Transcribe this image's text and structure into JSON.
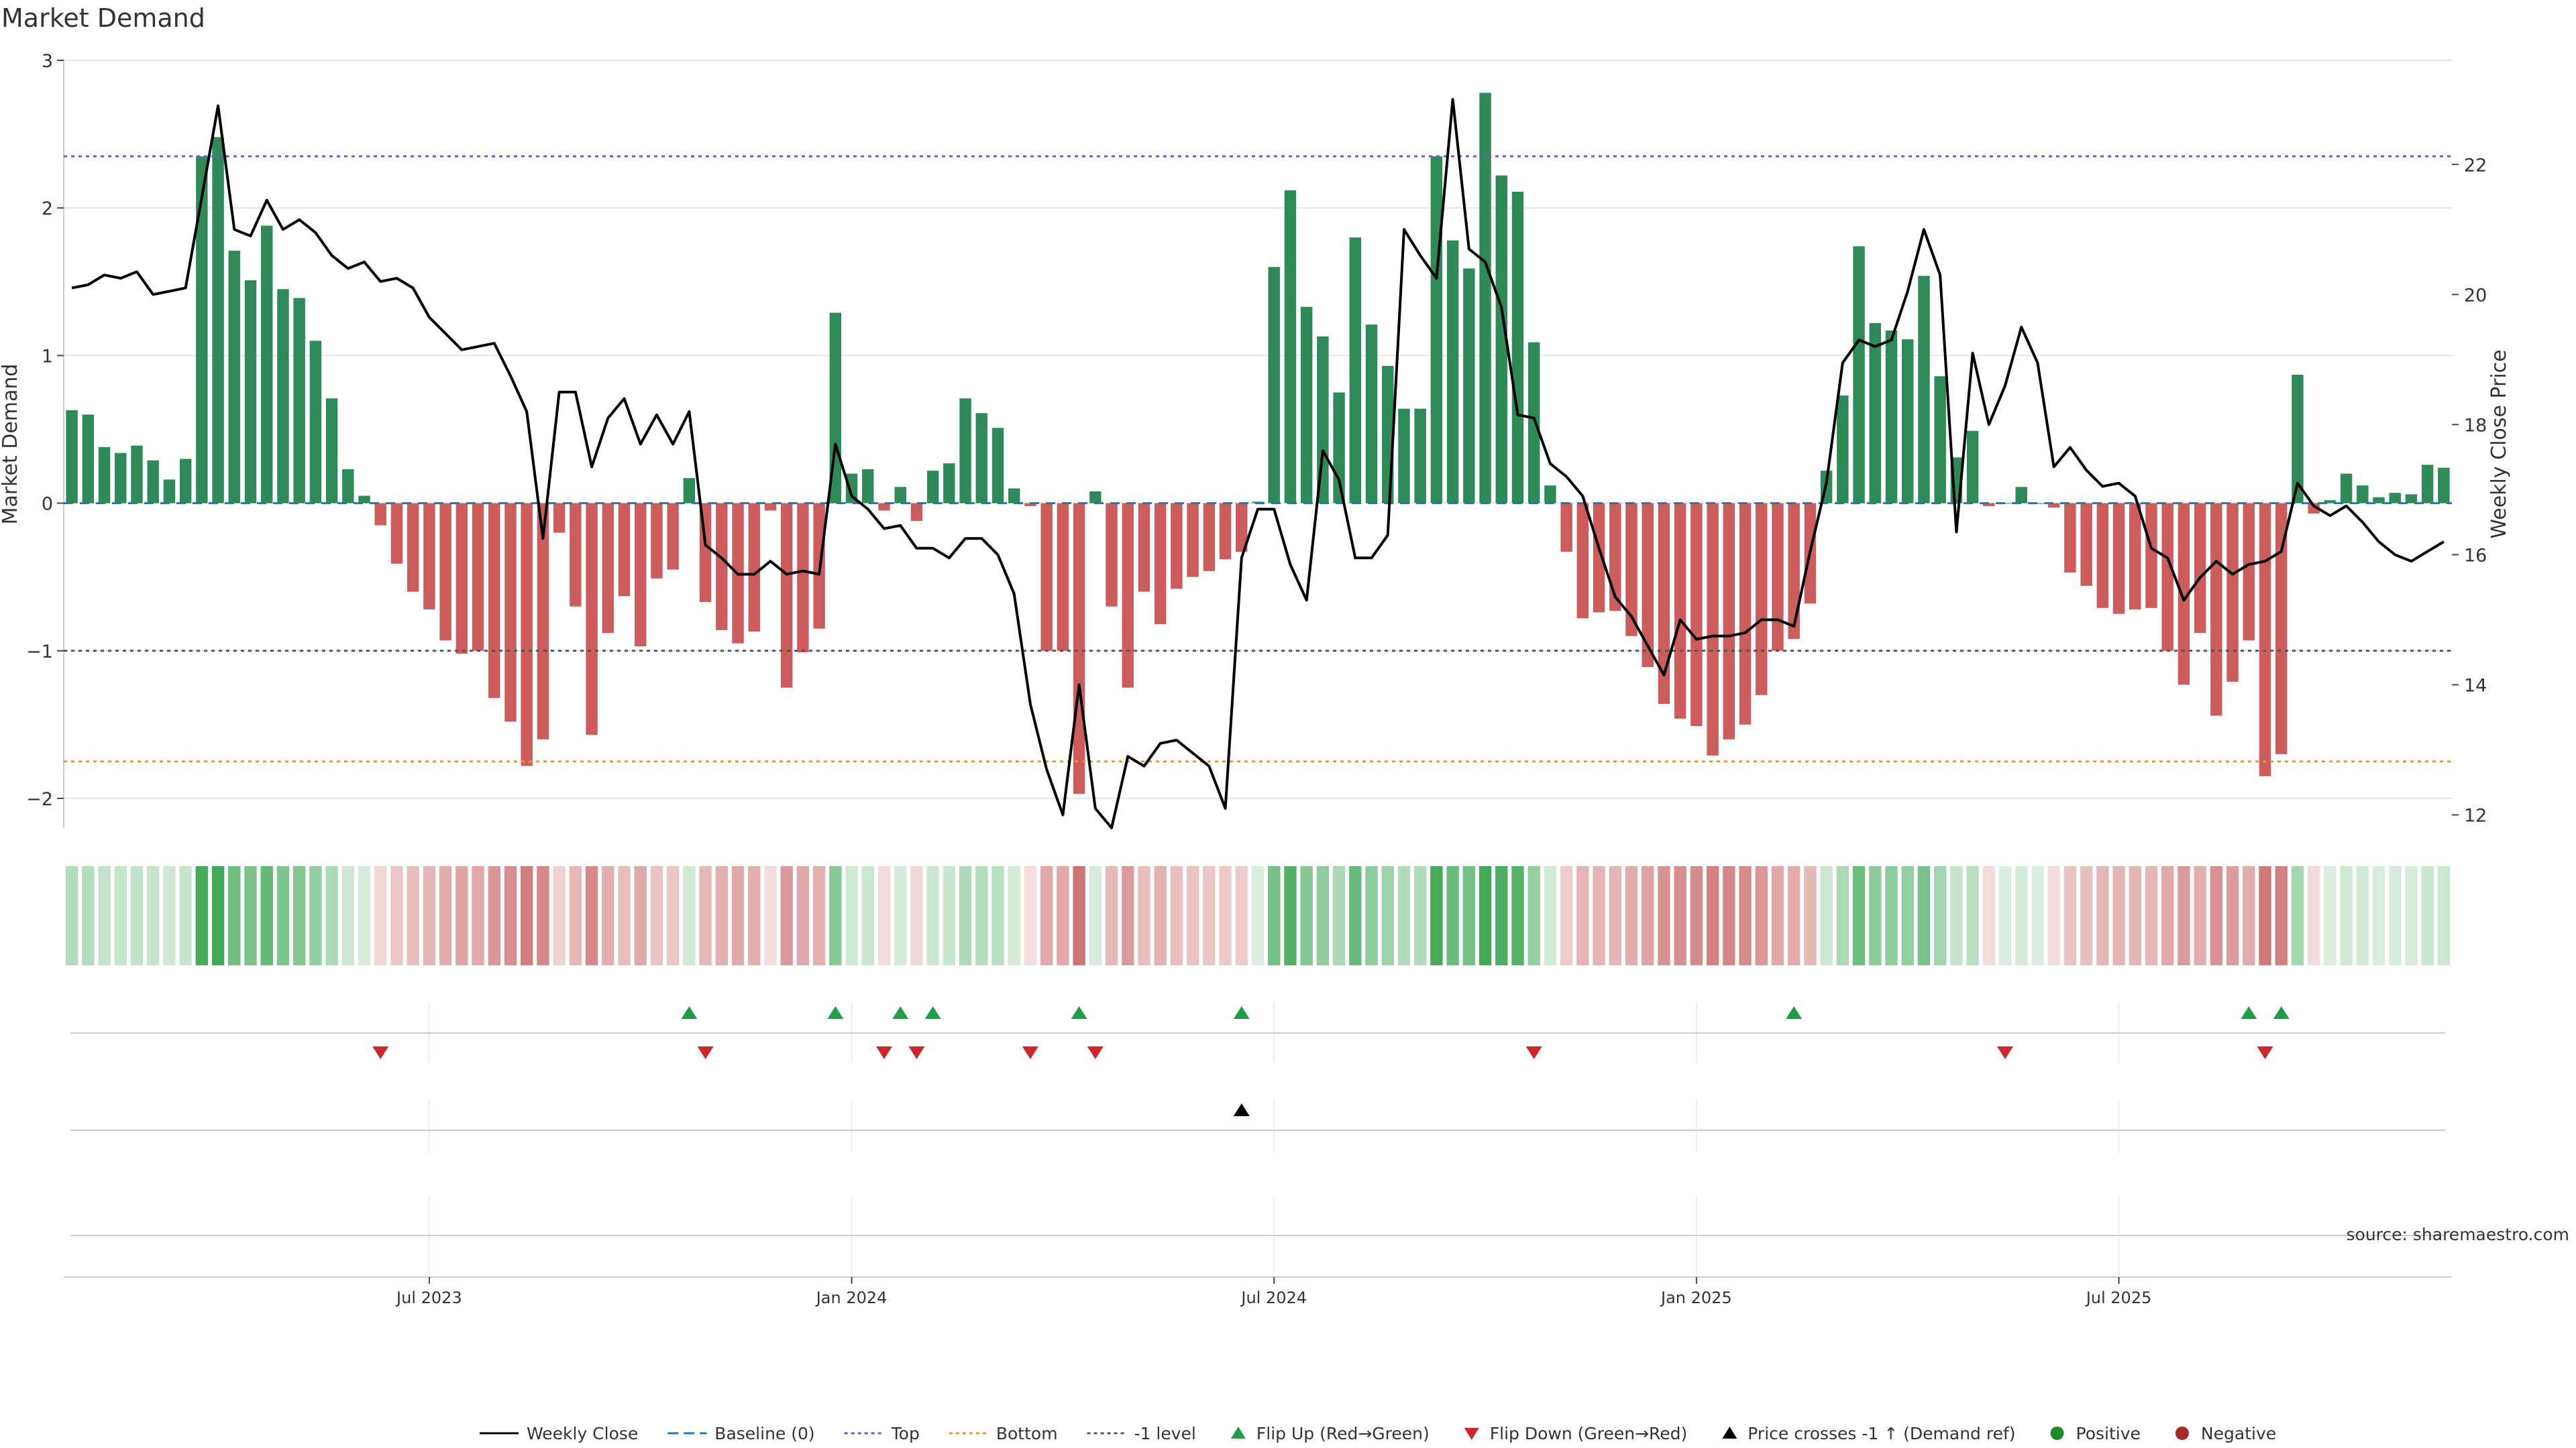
{
  "chart_data": {
    "type": "bar",
    "title": "Market Demand",
    "ylabel": "Market Demand",
    "y2label": "Weekly Close Price",
    "source": "source: sharemaestro.com",
    "ylim": [
      -2.2,
      3
    ],
    "y2lim": [
      11.8,
      23.6
    ],
    "yticks": [
      -2,
      -1,
      0,
      1,
      2,
      3
    ],
    "y2ticks": [
      12,
      14,
      16,
      18,
      20,
      22
    ],
    "x_ticks": [
      "Jul 2023",
      "Jan 2024",
      "Jul 2024",
      "Jan 2025",
      "Jul 2025"
    ],
    "x_tick_weeks": [
      22,
      48,
      74,
      100,
      126
    ],
    "lines": {
      "top": 2.35,
      "bottom": -1.75,
      "minus1": -1.0,
      "baseline": 0
    },
    "demand": [
      0.63,
      0.6,
      0.38,
      0.34,
      0.39,
      0.29,
      0.16,
      0.3,
      2.35,
      2.48,
      1.71,
      1.51,
      1.88,
      1.45,
      1.39,
      1.1,
      0.71,
      0.23,
      0.05,
      -0.15,
      -0.41,
      -0.6,
      -0.72,
      -0.93,
      -1.02,
      -1.0,
      -1.32,
      -1.48,
      -1.78,
      -1.6,
      -0.2,
      -0.7,
      -1.57,
      -0.88,
      -0.63,
      -0.97,
      -0.51,
      -0.45,
      0.17,
      -0.67,
      -0.86,
      -0.95,
      -0.87,
      -0.05,
      -1.25,
      -1.01,
      -0.85,
      1.29,
      0.2,
      0.23,
      -0.05,
      0.11,
      -0.12,
      0.22,
      0.27,
      0.71,
      0.61,
      0.51,
      0.1,
      -0.02,
      -1.0,
      -1.0,
      -1.97,
      0.08,
      -0.7,
      -1.25,
      -0.6,
      -0.82,
      -0.58,
      -0.5,
      -0.46,
      -0.38,
      -0.33,
      0.01,
      1.6,
      2.12,
      1.33,
      1.13,
      0.75,
      1.8,
      1.21,
      0.93,
      0.64,
      0.64,
      2.35,
      1.78,
      1.59,
      2.78,
      2.22,
      2.11,
      1.09,
      0.12,
      -0.33,
      -0.78,
      -0.74,
      -0.73,
      -0.9,
      -1.11,
      -1.36,
      -1.46,
      -1.51,
      -1.71,
      -1.6,
      -1.5,
      -1.3,
      -1.0,
      -0.92,
      -0.68,
      0.22,
      0.73,
      1.74,
      1.22,
      1.17,
      1.11,
      1.54,
      0.86,
      0.31,
      0.49,
      -0.02,
      0.0,
      0.11,
      0.0,
      -0.03,
      -0.47,
      -0.56,
      -0.71,
      -0.75,
      -0.72,
      -0.71,
      -1.0,
      -1.23,
      -0.88,
      -1.44,
      -1.21,
      -0.93,
      -1.85,
      -1.7,
      0.87,
      -0.07,
      0.02,
      0.2,
      0.12,
      0.04,
      0.07,
      0.06,
      0.26,
      0.24
    ],
    "close": [
      20.1,
      20.15,
      20.3,
      20.25,
      20.35,
      20.0,
      20.05,
      20.1,
      21.5,
      22.9,
      21.0,
      20.9,
      21.45,
      21.0,
      21.15,
      20.95,
      20.6,
      20.4,
      20.5,
      20.2,
      20.25,
      20.1,
      19.65,
      19.4,
      19.15,
      19.2,
      19.25,
      18.75,
      18.2,
      16.25,
      18.5,
      18.5,
      17.35,
      18.1,
      18.4,
      17.7,
      18.15,
      17.7,
      18.2,
      16.15,
      15.95,
      15.7,
      15.7,
      15.9,
      15.7,
      15.75,
      15.7,
      17.7,
      16.9,
      16.7,
      16.4,
      16.45,
      16.1,
      16.1,
      15.95,
      16.25,
      16.25,
      16.0,
      15.4,
      13.7,
      12.7,
      12.0,
      14.0,
      12.1,
      11.8,
      12.9,
      12.75,
      13.1,
      13.15,
      12.95,
      12.75,
      12.1,
      15.95,
      16.7,
      16.7,
      15.85,
      15.3,
      17.6,
      17.15,
      15.95,
      15.95,
      16.3,
      21.0,
      20.6,
      20.25,
      23.0,
      20.7,
      20.5,
      19.8,
      18.15,
      18.1,
      17.4,
      17.2,
      16.9,
      16.1,
      15.35,
      15.05,
      14.6,
      14.15,
      15.0,
      14.7,
      14.75,
      14.75,
      14.8,
      15.0,
      15.0,
      14.9,
      16.05,
      17.1,
      18.95,
      19.3,
      19.2,
      19.3,
      20.05,
      21.0,
      20.3,
      16.35,
      19.1,
      18.0,
      18.6,
      19.5,
      18.95,
      17.35,
      17.65,
      17.3,
      17.05,
      17.1,
      16.9,
      16.1,
      15.95,
      15.3,
      15.65,
      15.9,
      15.7,
      15.85,
      15.9,
      16.05,
      17.1,
      16.75,
      16.6,
      16.75,
      16.5,
      16.2,
      16.0,
      15.9,
      16.05,
      16.2
    ],
    "flips_up": [
      38,
      47,
      51,
      53,
      62,
      72,
      106,
      134,
      136
    ],
    "flips_down": [
      19,
      39,
      50,
      52,
      59,
      63,
      90,
      119,
      135
    ],
    "price_cross_up": [
      72
    ],
    "colors": {
      "positive": "#2e8b57",
      "negative": "#cd5c5c",
      "close_line": "#000000",
      "baseline": "#1f77b4",
      "top": "#6a5acd",
      "bottom": "#e69a2e",
      "minus1": "#555555",
      "flip_up": "#1e9e47",
      "flip_down": "#d0252a",
      "price_cross": "#000000",
      "legend_positive": "#1e8a28",
      "legend_negative": "#a52a2a"
    },
    "legend_placement": "bottom",
    "legend": [
      {
        "label": "Weekly Close",
        "marker": "line-solid"
      },
      {
        "label": "Baseline (0)",
        "marker": "line-dash"
      },
      {
        "label": "Top",
        "marker": "line-dot"
      },
      {
        "label": "Bottom",
        "marker": "line-dot"
      },
      {
        "label": "-1 level",
        "marker": "line-dot"
      },
      {
        "label": "Flip Up (Red→Green)",
        "marker": "triangle-up"
      },
      {
        "label": "Flip Down (Green→Red)",
        "marker": "triangle-down"
      },
      {
        "label": "Price crosses -1 ↑ (Demand ref)",
        "marker": "triangle-up"
      },
      {
        "label": "Positive",
        "marker": "circle"
      },
      {
        "label": "Negative",
        "marker": "circle"
      }
    ]
  }
}
